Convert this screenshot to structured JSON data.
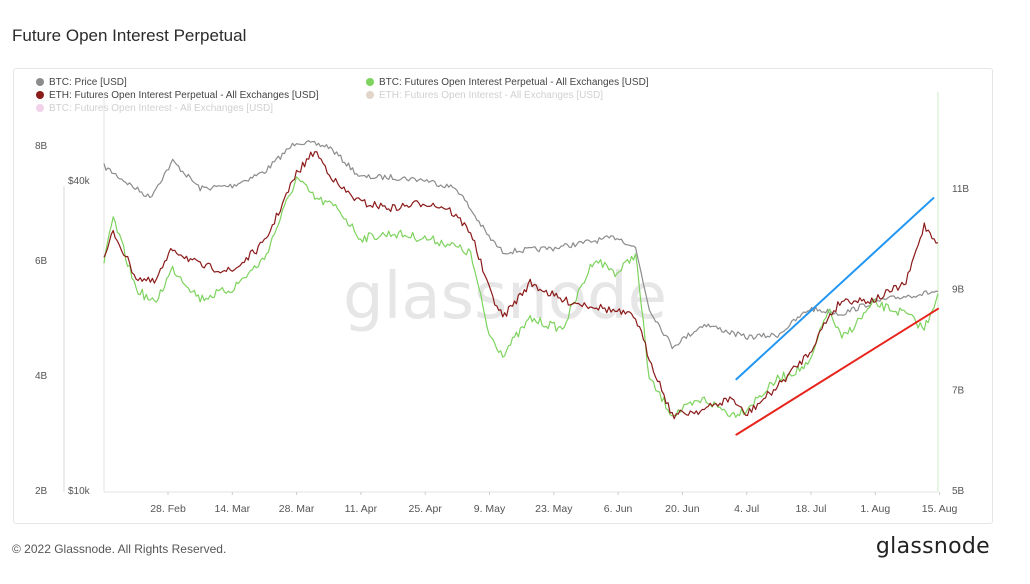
{
  "page": {
    "title": "Future Open Interest Perpetual",
    "footer": "© 2022 Glassnode. All Rights Reserved.",
    "brand": "glassnode",
    "watermark": "glassnode"
  },
  "colors": {
    "btc_price": "#8c8c8c",
    "btc_oi_perp": "#7dd35e",
    "eth_oi_perp": "#8b1a1a",
    "eth_oi": "#8a5a2b",
    "btc_oi": "#c94fa5",
    "trend_blue": "#2196f3",
    "trend_red": "#e8231b"
  },
  "legend": [
    {
      "label": "BTC: Price [USD]",
      "color": "#8c8c8c",
      "faded": false
    },
    {
      "label": "BTC: Futures Open Interest Perpetual - All Exchanges [USD]",
      "color": "#7dd35e",
      "faded": false
    },
    {
      "label": "ETH: Futures Open Interest Perpetual - All Exchanges [USD]",
      "color": "#8b1a1a",
      "faded": false
    },
    {
      "label": "ETH: Futures Open Interest - All Exchanges [USD]",
      "color": "#8a5a2b",
      "faded": true
    },
    {
      "label": "BTC: Futures Open Interest - All Exchanges [USD]",
      "color": "#c94fa5",
      "faded": true
    }
  ],
  "chart_data": {
    "type": "line",
    "title": "Future Open Interest Perpetual",
    "x_tick_labels": [
      "28. Feb",
      "14. Mar",
      "28. Mar",
      "11. Apr",
      "25. Apr",
      "9. May",
      "23. May",
      "6. Jun",
      "20. Jun",
      "4. Jul",
      "18. Jul",
      "1. Aug",
      "15. Aug"
    ],
    "x_range": [
      "2022-02-14",
      "2022-08-15"
    ],
    "left_axis_ticks": [
      "8B",
      "6B",
      "4B",
      "2B"
    ],
    "left_axis_range": [
      2,
      8
    ],
    "price_axis_ticks": [
      "$40k",
      "$10k"
    ],
    "price_axis_log": true,
    "right_axis_ticks": [
      "11B",
      "9B",
      "7B",
      "5B"
    ],
    "right_axis_range": [
      5,
      11
    ],
    "series": [
      {
        "name": "BTC: Price [USD]",
        "axis": "price",
        "unit": "USD",
        "points": [
          [
            "2022-02-14",
            42500
          ],
          [
            "2022-02-20",
            39000
          ],
          [
            "2022-02-24",
            37000
          ],
          [
            "2022-03-01",
            43500
          ],
          [
            "2022-03-07",
            38500
          ],
          [
            "2022-03-14",
            39000
          ],
          [
            "2022-03-21",
            41500
          ],
          [
            "2022-03-28",
            47500
          ],
          [
            "2022-04-04",
            46500
          ],
          [
            "2022-04-11",
            40500
          ],
          [
            "2022-04-18",
            40500
          ],
          [
            "2022-04-25",
            40000
          ],
          [
            "2022-05-02",
            38500
          ],
          [
            "2022-05-09",
            31000
          ],
          [
            "2022-05-12",
            29000
          ],
          [
            "2022-05-23",
            29500
          ],
          [
            "2022-06-06",
            31000
          ],
          [
            "2022-06-10",
            29500
          ],
          [
            "2022-06-13",
            22500
          ],
          [
            "2022-06-18",
            19000
          ],
          [
            "2022-06-25",
            21000
          ],
          [
            "2022-07-04",
            19800
          ],
          [
            "2022-07-11",
            20000
          ],
          [
            "2022-07-18",
            22500
          ],
          [
            "2022-07-25",
            22000
          ],
          [
            "2022-08-01",
            23200
          ],
          [
            "2022-08-08",
            23800
          ],
          [
            "2022-08-15",
            24300
          ]
        ]
      },
      {
        "name": "BTC: Futures Open Interest Perpetual - All Exchanges [USD]",
        "axis": "right",
        "unit": "B USD",
        "points": [
          [
            "2022-02-14",
            9.5
          ],
          [
            "2022-02-16",
            10.4
          ],
          [
            "2022-02-21",
            9.0
          ],
          [
            "2022-02-25",
            8.7
          ],
          [
            "2022-03-01",
            9.4
          ],
          [
            "2022-03-07",
            8.8
          ],
          [
            "2022-03-14",
            9.0
          ],
          [
            "2022-03-21",
            9.6
          ],
          [
            "2022-03-28",
            11.2
          ],
          [
            "2022-04-01",
            10.8
          ],
          [
            "2022-04-06",
            10.6
          ],
          [
            "2022-04-11",
            10.0
          ],
          [
            "2022-04-18",
            10.1
          ],
          [
            "2022-04-25",
            10.0
          ],
          [
            "2022-04-30",
            9.9
          ],
          [
            "2022-05-05",
            9.7
          ],
          [
            "2022-05-09",
            8.1
          ],
          [
            "2022-05-12",
            7.7
          ],
          [
            "2022-05-18",
            8.4
          ],
          [
            "2022-05-25",
            8.2
          ],
          [
            "2022-06-01",
            9.6
          ],
          [
            "2022-06-06",
            9.3
          ],
          [
            "2022-06-10",
            9.7
          ],
          [
            "2022-06-13",
            7.2
          ],
          [
            "2022-06-18",
            6.5
          ],
          [
            "2022-06-25",
            6.8
          ],
          [
            "2022-07-01",
            6.5
          ],
          [
            "2022-07-04",
            6.6
          ],
          [
            "2022-07-11",
            7.2
          ],
          [
            "2022-07-18",
            7.5
          ],
          [
            "2022-07-22",
            8.6
          ],
          [
            "2022-07-25",
            8.0
          ],
          [
            "2022-08-01",
            8.7
          ],
          [
            "2022-08-08",
            8.5
          ],
          [
            "2022-08-12",
            8.2
          ],
          [
            "2022-08-15",
            8.9
          ]
        ]
      },
      {
        "name": "ETH: Futures Open Interest Perpetual - All Exchanges [USD]",
        "axis": "left",
        "unit": "B USD",
        "points": [
          [
            "2022-02-14",
            6.0
          ],
          [
            "2022-02-16",
            6.5
          ],
          [
            "2022-02-21",
            5.7
          ],
          [
            "2022-02-25",
            5.6
          ],
          [
            "2022-03-01",
            6.2
          ],
          [
            "2022-03-07",
            5.9
          ],
          [
            "2022-03-14",
            5.8
          ],
          [
            "2022-03-21",
            6.3
          ],
          [
            "2022-03-28",
            7.5
          ],
          [
            "2022-04-01",
            7.9
          ],
          [
            "2022-04-06",
            7.3
          ],
          [
            "2022-04-11",
            7.0
          ],
          [
            "2022-04-18",
            6.9
          ],
          [
            "2022-04-25",
            7.0
          ],
          [
            "2022-04-30",
            6.9
          ],
          [
            "2022-05-05",
            6.5
          ],
          [
            "2022-05-09",
            5.5
          ],
          [
            "2022-05-12",
            5.0
          ],
          [
            "2022-05-18",
            5.6
          ],
          [
            "2022-05-25",
            5.3
          ],
          [
            "2022-06-01",
            5.2
          ],
          [
            "2022-06-06",
            5.1
          ],
          [
            "2022-06-10",
            5.0
          ],
          [
            "2022-06-13",
            4.3
          ],
          [
            "2022-06-18",
            3.3
          ],
          [
            "2022-06-25",
            3.4
          ],
          [
            "2022-07-01",
            3.6
          ],
          [
            "2022-07-04",
            3.3
          ],
          [
            "2022-07-11",
            3.8
          ],
          [
            "2022-07-18",
            4.4
          ],
          [
            "2022-07-22",
            5.0
          ],
          [
            "2022-07-25",
            5.3
          ],
          [
            "2022-08-01",
            5.3
          ],
          [
            "2022-08-08",
            5.6
          ],
          [
            "2022-08-12",
            6.6
          ],
          [
            "2022-08-15",
            6.3
          ]
        ]
      }
    ],
    "trendlines": [
      {
        "color": "#2196f3",
        "axis": "right",
        "from": [
          "2022-07-02",
          7.2
        ],
        "to": [
          "2022-08-14",
          10.8
        ]
      },
      {
        "color": "#e8231b",
        "axis": "right",
        "from": [
          "2022-07-02",
          6.1
        ],
        "to": [
          "2022-08-15",
          8.6
        ]
      }
    ]
  }
}
